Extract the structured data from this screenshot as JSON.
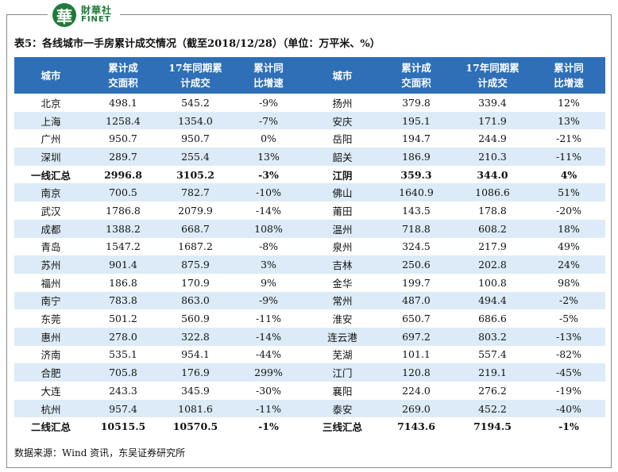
{
  "logo": {
    "glyph": "華",
    "cn": "財華社",
    "en": "FINET"
  },
  "caption": "表5：各线城市一手房累计成交情况（截至2018/12/28）（单位：万平米、%）",
  "headers": {
    "left": {
      "city": "城市",
      "area": [
        "累计成",
        "交面积"
      ],
      "yoy_sales": [
        "17年同期累",
        "计成交"
      ],
      "growth": [
        "累计同",
        "比增速"
      ]
    },
    "right": {
      "city": "城市",
      "area": [
        "累计成",
        "交面积"
      ],
      "yoy_sales": [
        "17年同期累",
        "计成交"
      ],
      "growth": [
        "累计同",
        "比增速"
      ]
    }
  },
  "rows": [
    [
      "北京",
      "498.1",
      "545.2",
      "-9%",
      "扬州",
      "379.8",
      "339.4",
      "12%"
    ],
    [
      "上海",
      "1258.4",
      "1354.0",
      "-7%",
      "安庆",
      "195.1",
      "171.9",
      "13%"
    ],
    [
      "广州",
      "950.7",
      "950.7",
      "0%",
      "岳阳",
      "194.7",
      "244.9",
      "-21%"
    ],
    [
      "深圳",
      "289.7",
      "255.4",
      "13%",
      "韶关",
      "186.9",
      "210.3",
      "-11%"
    ],
    [
      "一线汇总",
      "2996.8",
      "3105.2",
      "-3%",
      "江阴",
      "359.3",
      "344.0",
      "4%"
    ],
    [
      "南京",
      "700.5",
      "782.7",
      "-10%",
      "佛山",
      "1640.9",
      "1086.6",
      "51%"
    ],
    [
      "武汉",
      "1786.8",
      "2079.9",
      "-14%",
      "莆田",
      "143.5",
      "178.8",
      "-20%"
    ],
    [
      "成都",
      "1388.2",
      "668.7",
      "108%",
      "温州",
      "718.8",
      "608.2",
      "18%"
    ],
    [
      "青岛",
      "1547.2",
      "1687.2",
      "-8%",
      "泉州",
      "324.5",
      "217.9",
      "49%"
    ],
    [
      "苏州",
      "901.4",
      "875.9",
      "3%",
      "吉林",
      "250.6",
      "202.8",
      "24%"
    ],
    [
      "福州",
      "186.8",
      "170.9",
      "9%",
      "金华",
      "199.7",
      "100.8",
      "98%"
    ],
    [
      "南宁",
      "783.8",
      "863.0",
      "-9%",
      "常州",
      "487.0",
      "494.4",
      "-2%"
    ],
    [
      "东莞",
      "501.2",
      "560.9",
      "-11%",
      "淮安",
      "650.7",
      "686.6",
      "-5%"
    ],
    [
      "惠州",
      "278.0",
      "322.8",
      "-14%",
      "连云港",
      "697.2",
      "803.2",
      "-13%"
    ],
    [
      "济南",
      "535.1",
      "954.1",
      "-44%",
      "芜湖",
      "101.1",
      "557.4",
      "-82%"
    ],
    [
      "合肥",
      "705.8",
      "176.9",
      "299%",
      "江门",
      "120.8",
      "219.1",
      "-45%"
    ],
    [
      "大连",
      "243.3",
      "345.9",
      "-30%",
      "襄阳",
      "224.0",
      "276.2",
      "-19%"
    ],
    [
      "杭州",
      "957.4",
      "1081.6",
      "-11%",
      "泰安",
      "269.0",
      "452.2",
      "-40%"
    ],
    [
      "二线汇总",
      "10515.5",
      "10570.5",
      "-1%",
      "三线汇总",
      "7143.6",
      "7194.5",
      "-1%"
    ]
  ],
  "bold_rows": [
    4,
    18
  ],
  "source": "数据来源：Wind 资讯，东吴证券研究所",
  "colors": {
    "header_bg": "#2e6fb7",
    "stripe_bg": "#dcebf7",
    "brand_green": "#1f7a3a"
  }
}
